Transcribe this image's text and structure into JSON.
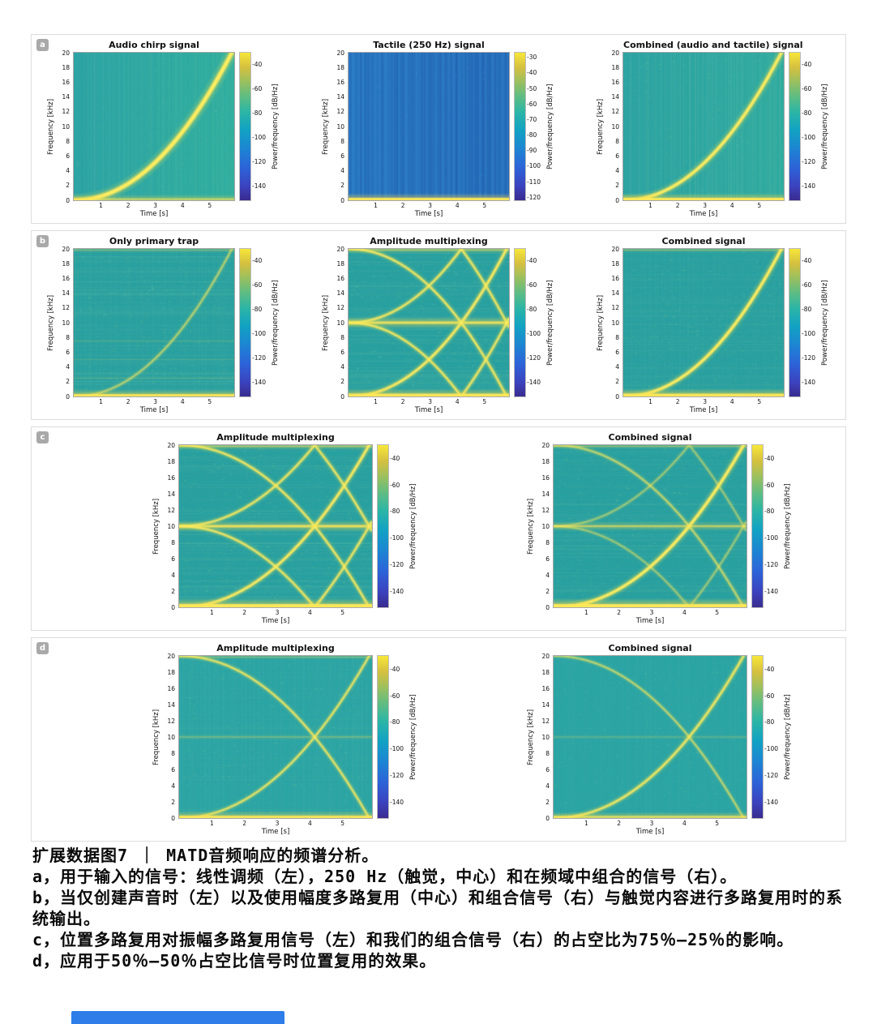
{
  "caption": {
    "title": "扩展数据图7 ｜ MATD音频响应的频谱分析。",
    "paragraphs": [
      "a，用于输入的信号：线性调频（左），250 Hz（触觉，中心）和在频域中组合的信号（右）。",
      "b，当仅创建声音时（左）以及使用幅度多路复用（中心）和组合信号（右）与触觉内容进行多路复用时的系统输出。",
      "c，位置多路复用对振幅多路复用信号（左）和我们的组合信号（右）的占空比为75％–25％的影响。",
      "d，应用于50％–50％占空比信号时位置复用的效果。"
    ]
  },
  "chart_data": {
    "type": "heatmap",
    "subtype": "spectrogram-grid",
    "xlabel": "Time [s]",
    "ylabel": "Frequency [kHz]",
    "colorbar_label": "Power/frequency [dB/Hz]",
    "x_range_s": [
      0,
      5.9
    ],
    "y_range_khz": [
      0,
      20
    ],
    "xticks": [
      1,
      2,
      3,
      4,
      5
    ],
    "yticks": [
      0,
      2,
      4,
      6,
      8,
      10,
      12,
      14,
      16,
      18,
      20
    ],
    "rows": [
      {
        "label": "a",
        "panels": [
          {
            "title": "Audio chirp signal",
            "signal": "audio chirp sweeping 0 to 20 kHz over ~5.9 s",
            "colorbar": {
              "max": -30,
              "min": -152,
              "ticks": [
                -40,
                -60,
                -80,
                -100,
                -120,
                -140
              ]
            },
            "render": {
              "bg": "#2aa2a4",
              "bg2": "#2fae9e",
              "vstripes": {
                "count": 85,
                "color": "#c2ecc4",
                "alpha": 0.1,
                "w": 1.2
              },
              "noise": 0.05,
              "curves": [
                {
                  "kind": "up",
                  "w": 4.6,
                  "a": 1
                }
              ],
              "bands": [
                {
                  "f": 0.15,
                  "h": 2.5,
                  "a": 0.55
                }
              ]
            }
          },
          {
            "title": "Tactile (250 Hz) signal",
            "signal": "250 Hz tactile carrier, energy concentrated near 0 kHz",
            "colorbar": {
              "max": -27,
              "min": -122,
              "ticks": [
                -30,
                -40,
                -50,
                -60,
                -70,
                -80,
                -90,
                -100,
                -110,
                -120
              ]
            },
            "render": {
              "bg": "#2c7ec6",
              "bg2": "#2a74c0",
              "vstripes": {
                "count": 48,
                "color": "#1c57a8",
                "alpha": 0.45,
                "w": 2.6
              },
              "noise": 0.03,
              "noiseColors": [
                "#4d9ada",
                "#1d64b0",
                "#6fb0e0"
              ],
              "bands": [
                {
                  "f": 0.15,
                  "h": 3,
                  "a": 0.95
                }
              ]
            }
          },
          {
            "title": "Combined (audio and tactile) signal",
            "signal": "audio chirp plus 250 Hz tactile band combined in the frequency domain",
            "colorbar": {
              "max": -30,
              "min": -152,
              "ticks": [
                -40,
                -60,
                -80,
                -100,
                -120,
                -140
              ]
            },
            "render": {
              "bg": "#2aa2a2",
              "bg2": "#2faa9f",
              "vstripes": {
                "count": 85,
                "color": "#c2ecc4",
                "alpha": 0.12,
                "w": 1.2
              },
              "noise": 0.06,
              "curves": [
                {
                  "kind": "up",
                  "w": 3.6,
                  "a": 0.95
                }
              ],
              "bands": [
                {
                  "f": 0.15,
                  "h": 3,
                  "a": 0.95
                }
              ]
            }
          }
        ]
      },
      {
        "label": "b",
        "panels": [
          {
            "title": "Only primary trap",
            "signal": "system output, sound only: faint chirp, strong DC band, broadband noise",
            "colorbar": {
              "max": -30,
              "min": -152,
              "ticks": [
                -40,
                -60,
                -80,
                -100,
                -120,
                -140
              ]
            },
            "render": {
              "bg": "#29a0a0",
              "noise": 0.22,
              "hstripes": {
                "count": 70,
                "alpha": 0.12
              },
              "vstripes": {
                "count": 60,
                "color": "#9de0c2",
                "alpha": 0.07,
                "w": 1.2
              },
              "curves": [
                {
                  "kind": "up",
                  "w": 2.3,
                  "a": 0.5
                }
              ],
              "bands": [
                {
                  "f": 7.5,
                  "h": 1,
                  "a": 0.12
                },
                {
                  "f": 5,
                  "h": 1,
                  "a": 0.1
                },
                {
                  "f": 2.5,
                  "h": 1,
                  "a": 0.12
                },
                {
                  "f": 19.85,
                  "h": 1.5,
                  "a": 0.25
                },
                {
                  "f": 0.15,
                  "h": 3,
                  "a": 0.9
                }
              ]
            }
          },
          {
            "title": "Amplitude multiplexing",
            "signal": "chirp with mirrored aliased copies and 10 kHz carrier band from amplitude multiplexing",
            "colorbar": {
              "max": -30,
              "min": -152,
              "ticks": [
                -40,
                -60,
                -80,
                -100,
                -120,
                -140
              ]
            },
            "render": {
              "bg": "#29a0a0",
              "noise": 0.25,
              "hstripes": {
                "count": 80,
                "alpha": 0.13
              },
              "curves": [
                {
                  "kind": "up",
                  "w": 3,
                  "a": 0.9
                },
                {
                  "kind": "down",
                  "w": 2.6,
                  "a": 0.8
                },
                {
                  "kind": "fold_up",
                  "w": 2.6,
                  "a": 0.8
                },
                {
                  "kind": "fold_dn",
                  "w": 2.6,
                  "a": 0.8
                }
              ],
              "bands": [
                {
                  "f": 10,
                  "h": 3,
                  "a": 0.8
                },
                {
                  "f": 19.85,
                  "h": 2,
                  "a": 0.45
                },
                {
                  "f": 0.15,
                  "h": 3.5,
                  "a": 0.95
                }
              ]
            }
          },
          {
            "title": "Combined signal",
            "signal": "combined-signal output: dominant chirp plus DC band",
            "colorbar": {
              "max": -30,
              "min": -152,
              "ticks": [
                -40,
                -60,
                -80,
                -100,
                -120,
                -140
              ]
            },
            "render": {
              "bg": "#29a0a0",
              "noise": 0.2,
              "hstripes": {
                "count": 60,
                "alpha": 0.1
              },
              "vstripes": {
                "count": 60,
                "color": "#9de0c2",
                "alpha": 0.06,
                "w": 1.2
              },
              "curves": [
                {
                  "kind": "up",
                  "w": 3.4,
                  "a": 0.95
                }
              ],
              "bands": [
                {
                  "f": 19.85,
                  "h": 1.5,
                  "a": 0.3
                },
                {
                  "f": 0.15,
                  "h": 3.5,
                  "a": 0.95
                }
              ]
            }
          }
        ]
      },
      {
        "label": "c",
        "panels": [
          {
            "title": "Amplitude multiplexing",
            "signal": "75%-25% duty-cycle position multiplexing applied to the amplitude-multiplexed signal",
            "colorbar": {
              "max": -30,
              "min": -152,
              "ticks": [
                -40,
                -60,
                -80,
                -100,
                -120,
                -140
              ]
            },
            "render": {
              "bg": "#29a0a0",
              "noise": 0.24,
              "hstripes": {
                "count": 85,
                "alpha": 0.12
              },
              "curves": [
                {
                  "kind": "up",
                  "w": 3,
                  "a": 0.9
                },
                {
                  "kind": "down",
                  "w": 2.6,
                  "a": 0.8
                },
                {
                  "kind": "fold_up",
                  "w": 2.6,
                  "a": 0.78
                },
                {
                  "kind": "fold_dn",
                  "w": 2.6,
                  "a": 0.78
                }
              ],
              "bands": [
                {
                  "f": 10,
                  "h": 3,
                  "a": 0.8
                },
                {
                  "f": 19.85,
                  "h": 2,
                  "a": 0.45
                },
                {
                  "f": 0.15,
                  "h": 4,
                  "a": 0.95
                }
              ]
            }
          },
          {
            "title": "Combined signal",
            "signal": "75%-25% duty-cycle position multiplexing applied to the combined signal",
            "colorbar": {
              "max": -30,
              "min": -152,
              "ticks": [
                -40,
                -60,
                -80,
                -100,
                -120,
                -140
              ]
            },
            "render": {
              "bg": "#29a0a0",
              "noise": 0.2,
              "hstripes": {
                "count": 70,
                "alpha": 0.11
              },
              "curves": [
                {
                  "kind": "up",
                  "w": 3.4,
                  "a": 0.95
                },
                {
                  "kind": "down",
                  "w": 2.4,
                  "a": 0.55
                },
                {
                  "kind": "fold_up",
                  "w": 2.2,
                  "a": 0.4
                },
                {
                  "kind": "fold_dn",
                  "w": 2.2,
                  "a": 0.4
                }
              ],
              "bands": [
                {
                  "f": 10,
                  "h": 2.5,
                  "a": 0.55
                },
                {
                  "f": 19.85,
                  "h": 1.5,
                  "a": 0.35
                },
                {
                  "f": 0.15,
                  "h": 4,
                  "a": 0.95
                }
              ]
            }
          }
        ]
      },
      {
        "label": "d",
        "panels": [
          {
            "title": "Amplitude multiplexing",
            "signal": "50%-50% duty-cycle position multiplexing: up- and down-chirps crossing near 10 kHz",
            "colorbar": {
              "max": -30,
              "min": -152,
              "ticks": [
                -40,
                -60,
                -80,
                -100,
                -120,
                -140
              ]
            },
            "render": {
              "bg": "#2ba4a4",
              "noise": 0.12,
              "vstripes": {
                "count": 70,
                "color": "#a8e4c6",
                "alpha": 0.09,
                "w": 1.2
              },
              "hstripes": {
                "count": 30,
                "alpha": 0.07
              },
              "curves": [
                {
                  "kind": "up",
                  "w": 2.4,
                  "a": 0.75
                },
                {
                  "kind": "down",
                  "w": 2.4,
                  "a": 0.75
                }
              ],
              "bands": [
                {
                  "f": 10,
                  "h": 1.5,
                  "a": 0.25
                },
                {
                  "f": 19.85,
                  "h": 1.2,
                  "a": 0.3
                },
                {
                  "f": 0.15,
                  "h": 3,
                  "a": 0.9
                }
              ]
            }
          },
          {
            "title": "Combined signal",
            "signal": "50%-50% duty-cycle position multiplexing applied to the combined signal",
            "colorbar": {
              "max": -30,
              "min": -152,
              "ticks": [
                -40,
                -60,
                -80,
                -100,
                -120,
                -140
              ]
            },
            "render": {
              "bg": "#2ba4a4",
              "noise": 0.1,
              "vstripes": {
                "count": 60,
                "color": "#a8e4c6",
                "alpha": 0.07,
                "w": 1.2
              },
              "curves": [
                {
                  "kind": "up",
                  "w": 2.8,
                  "a": 0.8
                },
                {
                  "kind": "down",
                  "w": 2.2,
                  "a": 0.55
                }
              ],
              "bands": [
                {
                  "f": 10,
                  "h": 1.2,
                  "a": 0.18
                },
                {
                  "f": 0.15,
                  "h": 2.5,
                  "a": 0.75
                }
              ]
            }
          }
        ]
      }
    ]
  }
}
